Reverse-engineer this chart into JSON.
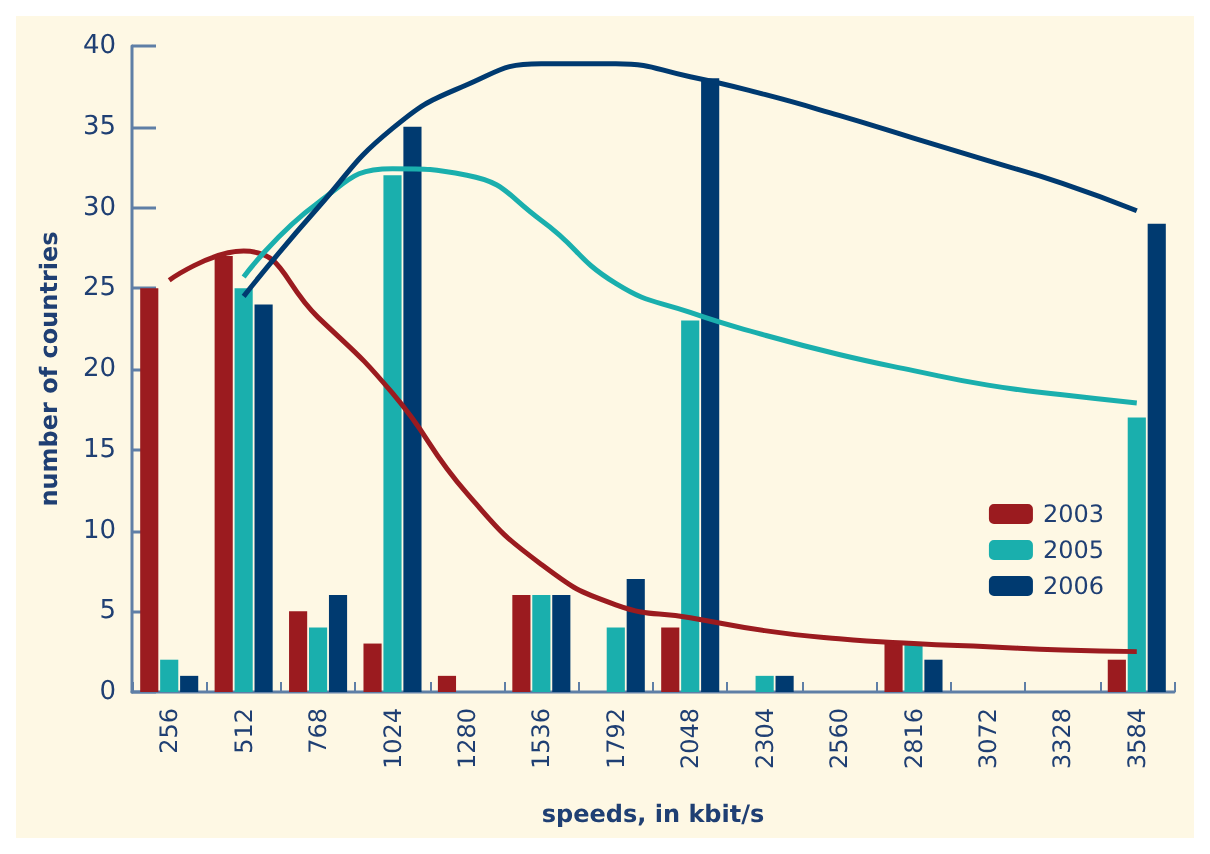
{
  "chart_data": {
    "type": "bar",
    "xlabel": "speeds, in kbit/s",
    "ylabel": "number of countries",
    "categories": [
      "256",
      "512",
      "768",
      "1024",
      "1280",
      "1536",
      "1792",
      "2048",
      "2304",
      "2560",
      "2816",
      "3072",
      "3328",
      "3584"
    ],
    "series": [
      {
        "name": "2003",
        "color": "#9b1b1f",
        "values": [
          25,
          27,
          5,
          3,
          1,
          6,
          null,
          4,
          null,
          null,
          3,
          null,
          null,
          2
        ]
      },
      {
        "name": "2005",
        "color": "#1aafad",
        "values": [
          2,
          25,
          4,
          32,
          null,
          6,
          4,
          23,
          1,
          null,
          3,
          null,
          null,
          17
        ]
      },
      {
        "name": "2006",
        "color": "#003a70",
        "values": [
          1,
          24,
          6,
          35,
          null,
          6,
          7,
          38,
          1,
          null,
          2,
          null,
          null,
          29
        ]
      },
      {
        "type": "line",
        "color": "#9b1b1f",
        "values": [
          25.5,
          27.3,
          23.2,
          18.5,
          12.3,
          7.9,
          5.4,
          4.6,
          3.8,
          3.3,
          3.0,
          2.8,
          2.6,
          2.5
        ]
      },
      {
        "type": "line",
        "color": "#1aafad",
        "values": [
          null,
          25.7,
          30.3,
          32.4,
          32,
          29.2,
          25.3,
          23.5,
          22.1,
          20.9,
          19.9,
          19,
          18.4,
          17.9
        ]
      },
      {
        "type": "line",
        "color": "#003a70",
        "values": [
          null,
          24.5,
          30,
          34.9,
          37.6,
          38.9,
          38.9,
          38.1,
          37,
          35.7,
          34.3,
          32.9,
          31.5,
          29.8
        ]
      }
    ],
    "ylim": [
      0,
      40
    ],
    "yticks": [
      0,
      5,
      10,
      15,
      20,
      25,
      30,
      35,
      40
    ],
    "grid": false,
    "legend": "right"
  }
}
